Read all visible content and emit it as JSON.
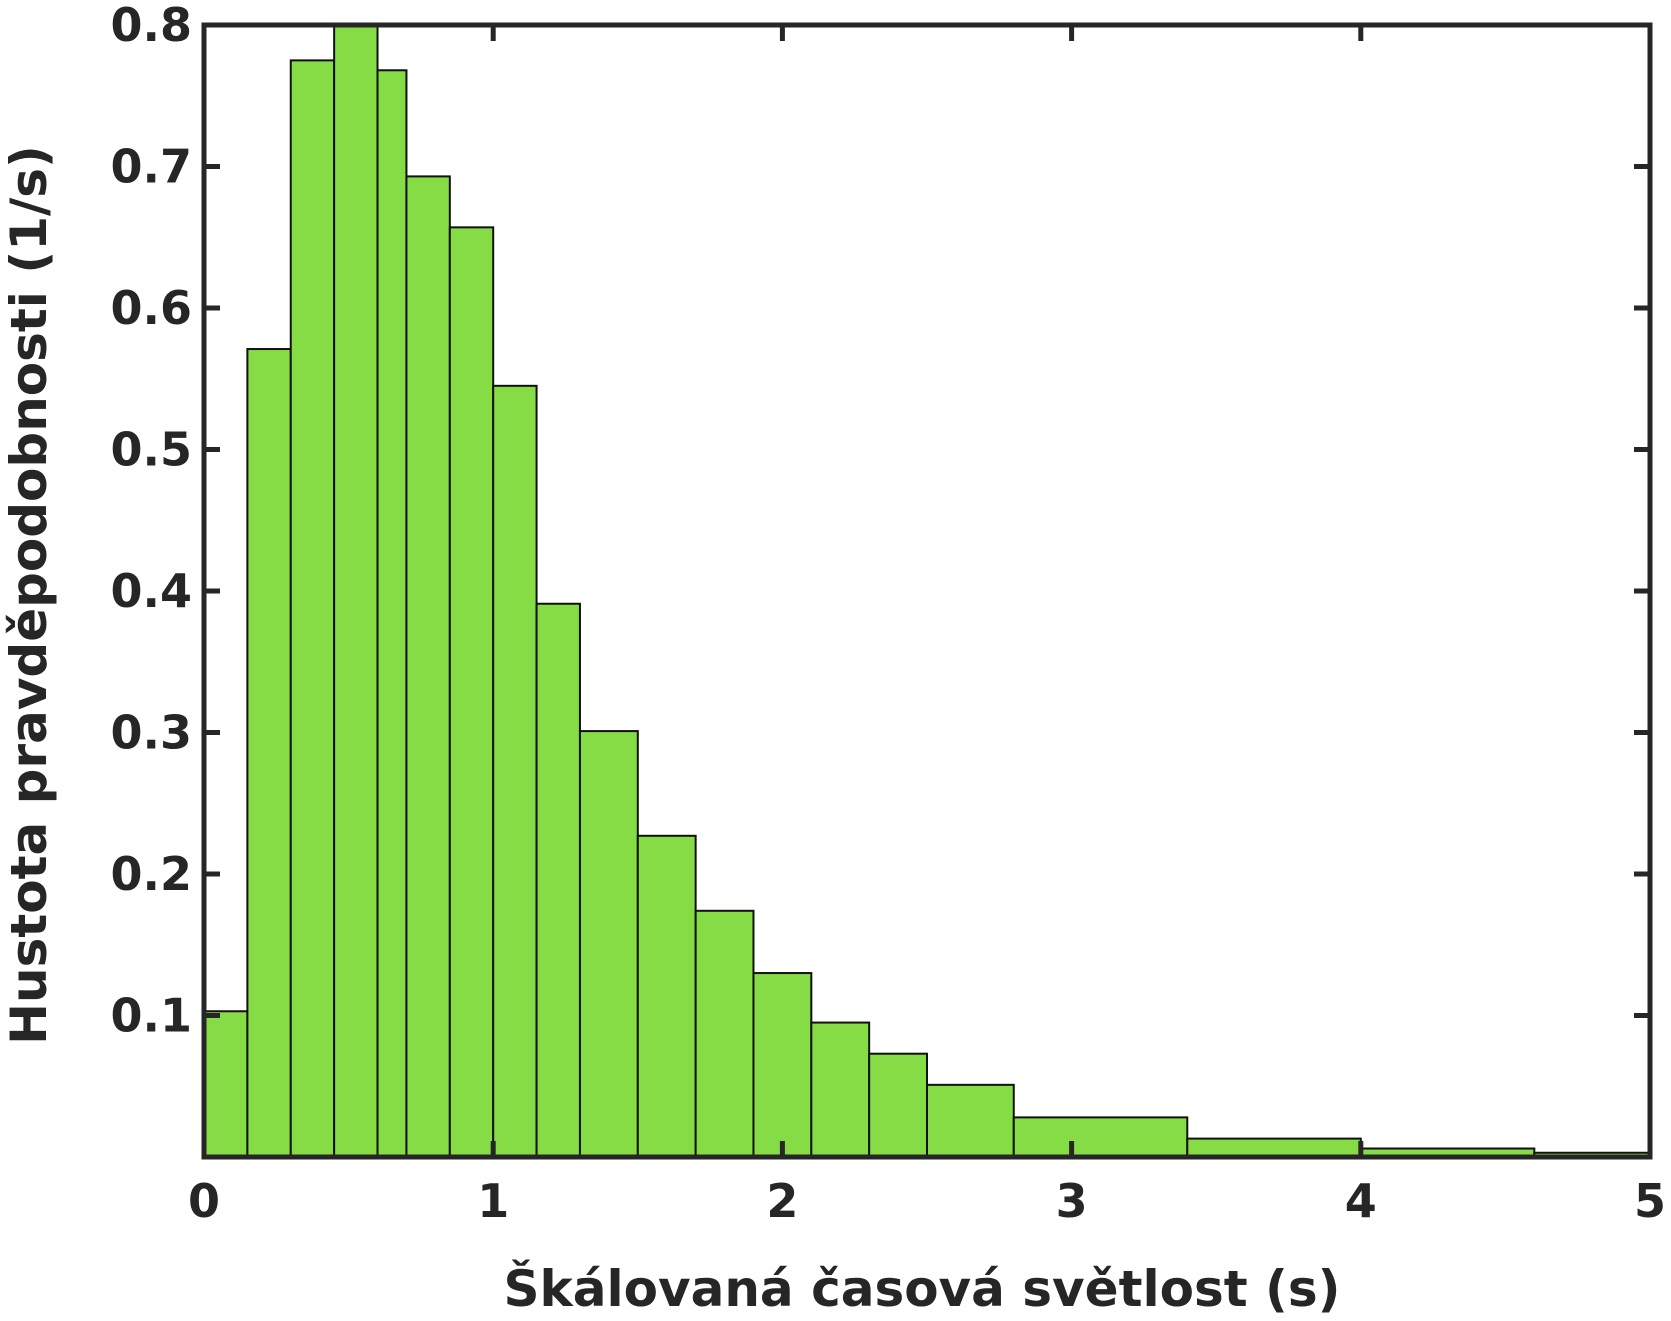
{
  "chart_data": {
    "type": "bar",
    "histogram": true,
    "xlabel": "Škálovaná časová světlost (s)",
    "ylabel": "Hustota pravděpodobnosti (1/s)",
    "xlim": [
      0,
      5
    ],
    "ylim": [
      0,
      0.8
    ],
    "x_ticks": [
      0,
      1,
      2,
      3,
      4,
      5
    ],
    "x_tick_labels": [
      "0",
      "1",
      "2",
      "3",
      "4",
      "5"
    ],
    "y_ticks": [
      0.1,
      0.2,
      0.3,
      0.4,
      0.5,
      0.6,
      0.7,
      0.8
    ],
    "y_tick_labels": [
      "0.1",
      "0.2",
      "0.3",
      "0.4",
      "0.5",
      "0.6",
      "0.7",
      "0.8"
    ],
    "grid": false,
    "bar_color": "#85dc45",
    "edge_color": "#111111",
    "axis_color": "#262626",
    "bins": [
      {
        "x0": 0.0,
        "x1": 0.15,
        "value": 0.103
      },
      {
        "x0": 0.15,
        "x1": 0.3,
        "value": 0.571
      },
      {
        "x0": 0.3,
        "x1": 0.45,
        "value": 0.775
      },
      {
        "x0": 0.45,
        "x1": 0.6,
        "value": 0.799
      },
      {
        "x0": 0.6,
        "x1": 0.7,
        "value": 0.768
      },
      {
        "x0": 0.7,
        "x1": 0.85,
        "value": 0.693
      },
      {
        "x0": 0.85,
        "x1": 1.0,
        "value": 0.657
      },
      {
        "x0": 1.0,
        "x1": 1.15,
        "value": 0.545
      },
      {
        "x0": 1.15,
        "x1": 1.3,
        "value": 0.391
      },
      {
        "x0": 1.3,
        "x1": 1.5,
        "value": 0.301
      },
      {
        "x0": 1.5,
        "x1": 1.7,
        "value": 0.227
      },
      {
        "x0": 1.7,
        "x1": 1.9,
        "value": 0.174
      },
      {
        "x0": 1.9,
        "x1": 2.1,
        "value": 0.13
      },
      {
        "x0": 2.1,
        "x1": 2.3,
        "value": 0.095
      },
      {
        "x0": 2.3,
        "x1": 2.5,
        "value": 0.073
      },
      {
        "x0": 2.5,
        "x1": 2.8,
        "value": 0.051
      },
      {
        "x0": 2.8,
        "x1": 3.4,
        "value": 0.028
      },
      {
        "x0": 3.4,
        "x1": 4.0,
        "value": 0.013
      },
      {
        "x0": 4.0,
        "x1": 4.6,
        "value": 0.006
      },
      {
        "x0": 4.6,
        "x1": 5.0,
        "value": 0.003
      }
    ]
  }
}
